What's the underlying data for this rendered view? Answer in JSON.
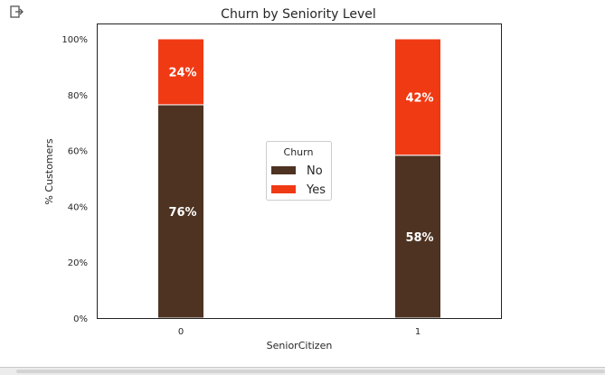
{
  "icons": {
    "output": "open-in-new-icon"
  },
  "chart_data": {
    "type": "bar",
    "stacked": true,
    "title": "Churn by Seniority Level",
    "xlabel": "SeniorCitizen",
    "ylabel": "% Customers",
    "categories": [
      "0",
      "1"
    ],
    "ylim": [
      0,
      1
    ],
    "yticks": [
      "0%",
      "20%",
      "40%",
      "60%",
      "80%",
      "100%"
    ],
    "grid": false,
    "series": [
      {
        "name": "No",
        "values": [
          0.7639,
          0.5832
        ],
        "labels": [
          "76%",
          "58%"
        ],
        "color": "#4e3322"
      },
      {
        "name": "Yes",
        "values": [
          0.2361,
          0.4168
        ],
        "labels": [
          "24%",
          "42%"
        ],
        "color": "#f03a14"
      }
    ],
    "legend": {
      "title": "Churn",
      "position": "center"
    }
  }
}
